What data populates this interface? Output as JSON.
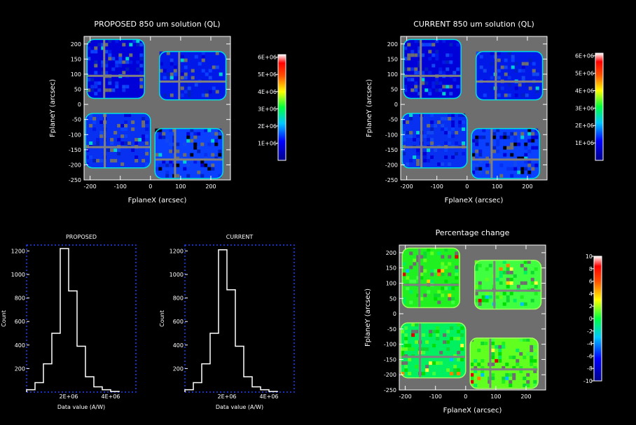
{
  "chart_data": [
    {
      "type": "heatmap",
      "title": "PROPOSED 850 um solution (QL)",
      "xlabel": "FplaneX (arcsec)",
      "ylabel": "FplaneY (arcsec)",
      "xlim": [
        -220,
        265
      ],
      "ylim": [
        -250,
        225
      ],
      "xticks": [
        -200,
        -100,
        0,
        100,
        200
      ],
      "yticks": [
        -250,
        -200,
        -150,
        -100,
        -50,
        0,
        50,
        100,
        150,
        200
      ],
      "colorbar": {
        "min": 0,
        "max": 6000000,
        "ticks": [
          "1E+06",
          "2E+06",
          "3E+06",
          "4E+06",
          "5E+06",
          "6E+06"
        ]
      }
    },
    {
      "type": "heatmap",
      "title": "CURRENT 850 um solution (QL)",
      "xlabel": "FplaneX (arcsec)",
      "ylabel": "FplaneY (arcsec)",
      "xlim": [
        -220,
        265
      ],
      "ylim": [
        -250,
        225
      ],
      "xticks": [
        -200,
        -100,
        0,
        100,
        200
      ],
      "yticks": [
        -250,
        -200,
        -150,
        -100,
        -50,
        0,
        50,
        100,
        150,
        200
      ],
      "colorbar": {
        "min": 0,
        "max": 6000000,
        "ticks": [
          "1E+06",
          "2E+06",
          "3E+06",
          "4E+06",
          "5E+06",
          "6E+06"
        ]
      }
    },
    {
      "type": "bar",
      "title": "PROPOSED",
      "xlabel": "Data value (A/W)",
      "ylabel": "Count",
      "xlim": [
        0,
        5200000
      ],
      "ylim": [
        0,
        1250
      ],
      "xticks": [
        "2E+06",
        "4E+06"
      ],
      "yticks": [
        "200",
        "400",
        "600",
        "800",
        "1000",
        "1200"
      ],
      "bins": [
        0,
        400000,
        800000,
        1200000,
        1600000,
        2000000,
        2400000,
        2800000,
        3200000,
        3600000,
        4000000
      ],
      "values": [
        20,
        80,
        240,
        500,
        1220,
        860,
        390,
        130,
        45,
        20,
        5
      ]
    },
    {
      "type": "bar",
      "title": "CURRENT",
      "xlabel": "Data value (A/W)",
      "ylabel": "Count",
      "xlim": [
        0,
        5200000
      ],
      "ylim": [
        0,
        1250
      ],
      "xticks": [
        "2E+06",
        "4E+06"
      ],
      "yticks": [
        "200",
        "400",
        "600",
        "800",
        "1000",
        "1200"
      ],
      "bins": [
        0,
        400000,
        800000,
        1200000,
        1600000,
        2000000,
        2400000,
        2800000,
        3200000,
        3600000,
        4000000
      ],
      "values": [
        20,
        80,
        240,
        500,
        1210,
        870,
        390,
        130,
        45,
        20,
        5
      ]
    },
    {
      "type": "heatmap",
      "title": "Percentage change",
      "xlabel": "FplaneX (arcsec)",
      "ylabel": "FplaneY (arcsec)",
      "xlim": [
        -220,
        265
      ],
      "ylim": [
        -250,
        225
      ],
      "xticks": [
        -200,
        -100,
        0,
        100,
        200
      ],
      "yticks": [
        -250,
        -200,
        -150,
        -100,
        -50,
        0,
        50,
        100,
        150,
        200
      ],
      "colorbar": {
        "min": -10,
        "max": 10,
        "ticks": [
          "-10",
          "-8",
          "-6",
          "-4",
          "-2",
          "0",
          "2",
          "4",
          "6",
          "8",
          "10"
        ]
      }
    }
  ]
}
